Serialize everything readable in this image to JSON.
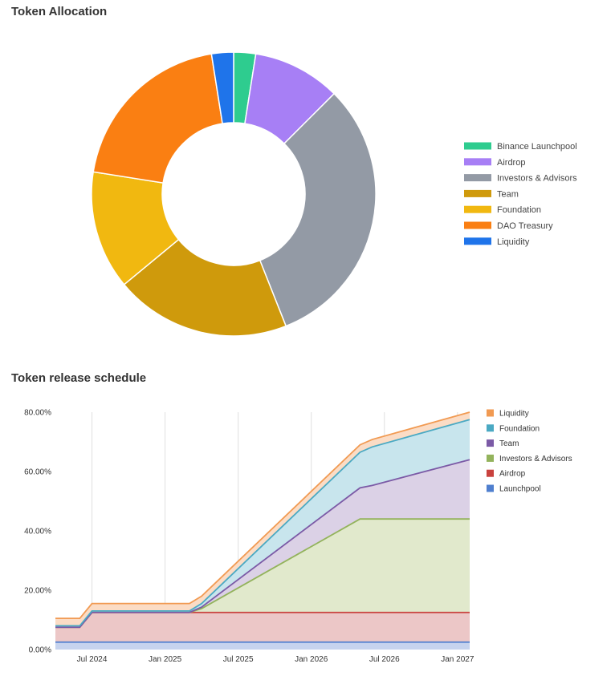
{
  "chart_data": [
    {
      "type": "pie",
      "title": "Token Allocation",
      "donut": true,
      "legend_position": "right",
      "slices": [
        {
          "label": "Binance Launchpool",
          "value": 2.5,
          "color": "#2ecc8f"
        },
        {
          "label": "Airdrop",
          "value": 10,
          "color": "#a77ff5"
        },
        {
          "label": "Investors & Advisors",
          "value": 31.5,
          "color": "#939aa5"
        },
        {
          "label": "Team",
          "value": 20,
          "color": "#cf9a0c"
        },
        {
          "label": "Foundation",
          "value": 13.5,
          "color": "#f1b810"
        },
        {
          "label": "DAO Treasury",
          "value": 20,
          "color": "#fa7f12"
        },
        {
          "label": "Liquidity",
          "value": 2.5,
          "color": "#1f74ea"
        }
      ]
    },
    {
      "type": "area",
      "title": "Token release schedule",
      "stacked": true,
      "legend_position": "right",
      "xlim": [
        0,
        34
      ],
      "ylim": [
        0,
        80
      ],
      "yticks": [
        0,
        20,
        40,
        60,
        80
      ],
      "ytick_labels": [
        "0.00%",
        "20.00%",
        "40.00%",
        "60.00%",
        "80.00%"
      ],
      "xticks": [
        3,
        9,
        15,
        21,
        27,
        33
      ],
      "xtick_labels": [
        "Jul 2024",
        "Jan 2025",
        "Jul 2025",
        "Jan 2026",
        "Jul 2026",
        "Jan 2027"
      ],
      "x": [
        0,
        2,
        3,
        5,
        11,
        12,
        25,
        26,
        34
      ],
      "series": [
        {
          "name": "Launchpool",
          "color": "#4f7fcf",
          "fill": "#c6d3ee",
          "values": [
            2.5,
            2.5,
            2.5,
            2.5,
            2.5,
            2.5,
            2.5,
            2.5,
            2.5
          ]
        },
        {
          "name": "Airdrop",
          "color": "#c9423e",
          "fill": "#ecc7c7",
          "values": [
            5,
            5,
            10,
            10,
            10,
            10,
            10,
            10,
            10
          ]
        },
        {
          "name": "Investors & Advisors",
          "color": "#93b35c",
          "fill": "#e1e9cc",
          "values": [
            0,
            0,
            0,
            0,
            0,
            1.3,
            31.5,
            31.5,
            31.5
          ]
        },
        {
          "name": "Team",
          "color": "#7b5aa6",
          "fill": "#dbd1e6",
          "values": [
            0,
            0,
            0,
            0,
            0,
            0.5,
            10.5,
            11.3,
            20
          ]
        },
        {
          "name": "Foundation",
          "color": "#4aa9c3",
          "fill": "#c8e5ed",
          "values": [
            0.5,
            0.5,
            0.5,
            0.5,
            0.5,
            1.2,
            12,
            13,
            13.5
          ]
        },
        {
          "name": "Liquidity",
          "color": "#f19a52",
          "fill": "#fbdcc5",
          "values": [
            2.5,
            2.5,
            2.5,
            2.5,
            2.5,
            2.5,
            2.5,
            2.5,
            2.5
          ]
        }
      ],
      "legend_order": [
        "Liquidity",
        "Foundation",
        "Team",
        "Investors & Advisors",
        "Airdrop",
        "Launchpool"
      ]
    }
  ]
}
